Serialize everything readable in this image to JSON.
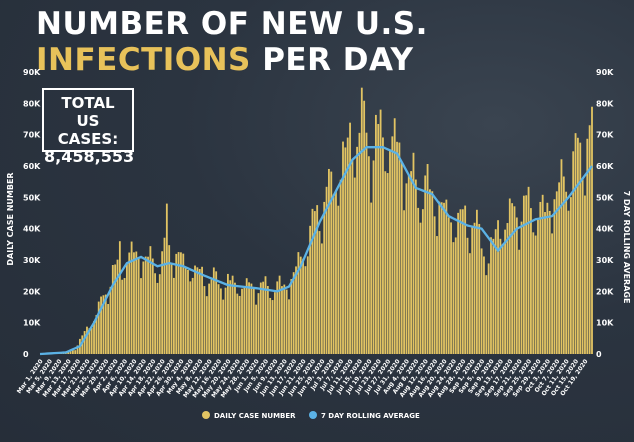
{
  "title_line1": "NUMBER OF NEW U.S.",
  "title_line2_highlight": "INFECTIONS",
  "title_line2_rest": "PER DAY",
  "total_box": {
    "line1": "TOTAL",
    "line2": "US CASES:",
    "value": "8,458,553"
  },
  "chart_data": {
    "type": "bar",
    "title": "NUMBER OF NEW U.S. INFECTIONS PER DAY",
    "ylabel": "DAILY CASE NUMBER",
    "y2label": "7 DAY ROLLING AVERAGE",
    "ylim": [
      0,
      90000
    ],
    "yticks": [
      0,
      10000,
      20000,
      30000,
      40000,
      50000,
      60000,
      70000,
      80000,
      90000
    ],
    "ytick_labels": [
      "0",
      "10K",
      "20K",
      "30K",
      "40K",
      "50K",
      "60K",
      "70K",
      "80K",
      "90K"
    ],
    "x_start": "Mar 1, 2020",
    "x_end": "Oct 22, 2020",
    "x_tick_every_days": 4,
    "series": [
      {
        "name": "DAILY CASE NUMBER",
        "kind": "bar",
        "color": "#e2c463"
      },
      {
        "name": "7 DAY ROLLING AVERAGE",
        "kind": "line",
        "color": "#5bb2e6"
      }
    ],
    "anchors_daily": [
      [
        "2020-03-01",
        0
      ],
      [
        "2020-03-10",
        300
      ],
      [
        "2020-03-16",
        1500
      ],
      [
        "2020-03-20",
        7000
      ],
      [
        "2020-03-24",
        11000
      ],
      [
        "2020-03-28",
        18000
      ],
      [
        "2020-04-01",
        25000
      ],
      [
        "2020-04-05",
        28000
      ],
      [
        "2020-04-10",
        32000
      ],
      [
        "2020-04-15",
        30000
      ],
      [
        "2020-04-20",
        28000
      ],
      [
        "2020-04-25",
        33000
      ],
      [
        "2020-05-01",
        29000
      ],
      [
        "2020-05-10",
        24000
      ],
      [
        "2020-05-20",
        22000
      ],
      [
        "2020-06-01",
        21000
      ],
      [
        "2020-06-10",
        21000
      ],
      [
        "2020-06-15",
        22000
      ],
      [
        "2020-06-20",
        30000
      ],
      [
        "2020-06-25",
        40000
      ],
      [
        "2020-07-01",
        50000
      ],
      [
        "2020-07-05",
        55000
      ],
      [
        "2020-07-10",
        65000
      ],
      [
        "2020-07-16",
        73000
      ],
      [
        "2020-07-20",
        65000
      ],
      [
        "2020-07-25",
        68000
      ],
      [
        "2020-07-31",
        66000
      ],
      [
        "2020-08-05",
        55000
      ],
      [
        "2020-08-10",
        52000
      ],
      [
        "2020-08-15",
        50000
      ],
      [
        "2020-08-20",
        45000
      ],
      [
        "2020-08-25",
        42000
      ],
      [
        "2020-09-01",
        42000
      ],
      [
        "2020-09-08",
        30000
      ],
      [
        "2020-09-12",
        40000
      ],
      [
        "2020-09-20",
        45000
      ],
      [
        "2020-09-26",
        46000
      ],
      [
        "2020-10-01",
        44000
      ],
      [
        "2020-10-08",
        52000
      ],
      [
        "2020-10-15",
        60000
      ],
      [
        "2020-10-22",
        70000
      ]
    ],
    "anchors_avg": [
      [
        "2020-03-01",
        0
      ],
      [
        "2020-03-12",
        500
      ],
      [
        "2020-03-18",
        2500
      ],
      [
        "2020-03-24",
        10000
      ],
      [
        "2020-04-01",
        22000
      ],
      [
        "2020-04-07",
        29000
      ],
      [
        "2020-04-13",
        31000
      ],
      [
        "2020-04-20",
        28000
      ],
      [
        "2020-04-25",
        29000
      ],
      [
        "2020-05-01",
        28000
      ],
      [
        "2020-05-10",
        25000
      ],
      [
        "2020-05-20",
        22000
      ],
      [
        "2020-06-01",
        21000
      ],
      [
        "2020-06-10",
        20000
      ],
      [
        "2020-06-15",
        21500
      ],
      [
        "2020-06-20",
        28000
      ],
      [
        "2020-06-28",
        42000
      ],
      [
        "2020-07-05",
        52000
      ],
      [
        "2020-07-12",
        62000
      ],
      [
        "2020-07-18",
        66000
      ],
      [
        "2020-07-25",
        66000
      ],
      [
        "2020-07-31",
        64000
      ],
      [
        "2020-08-08",
        53000
      ],
      [
        "2020-08-15",
        51000
      ],
      [
        "2020-08-22",
        44000
      ],
      [
        "2020-08-30",
        41000
      ],
      [
        "2020-09-05",
        40000
      ],
      [
        "2020-09-12",
        33000
      ],
      [
        "2020-09-20",
        40000
      ],
      [
        "2020-09-28",
        43000
      ],
      [
        "2020-10-05",
        44000
      ],
      [
        "2020-10-12",
        50000
      ],
      [
        "2020-10-22",
        60000
      ]
    ],
    "spikes": [
      [
        "2020-04-24",
        48000
      ],
      [
        "2020-07-16",
        85000
      ],
      [
        "2020-07-24",
        78000
      ],
      [
        "2020-10-16",
        69000
      ],
      [
        "2020-04-04",
        36000
      ],
      [
        "2020-05-22",
        25000
      ]
    ]
  },
  "legend": {
    "item1": "DAILY CASE NUMBER",
    "item2": "7 DAY ROLLING AVERAGE"
  }
}
